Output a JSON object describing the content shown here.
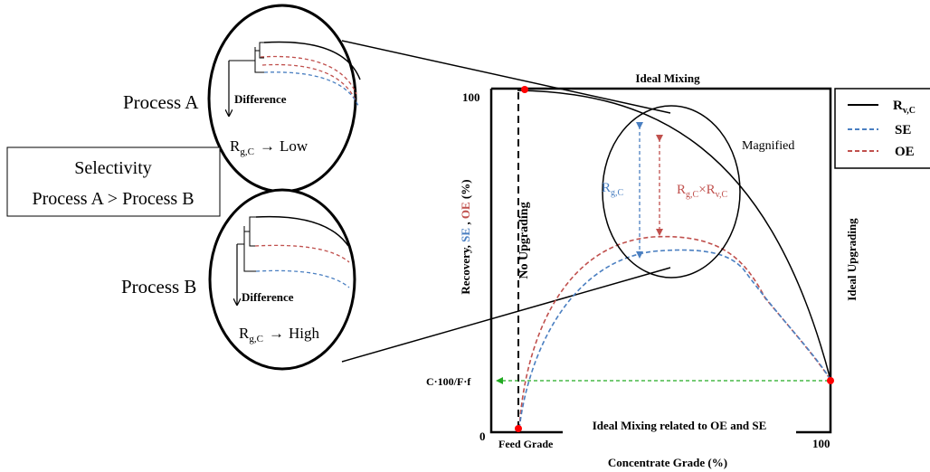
{
  "process_a": {
    "title": "Process A",
    "difference_label": "Difference",
    "rgc_main": "R",
    "rgc_sub": "g,C",
    "arrow": "→",
    "level": "Low"
  },
  "process_b": {
    "title": "Process B",
    "difference_label": "Difference",
    "rgc_main": "R",
    "rgc_sub": "g,C",
    "arrow": "→",
    "level": "High"
  },
  "selectivity_box": {
    "line1": "Selectivity",
    "line2": "Process A > Process B"
  },
  "chart": {
    "top_label": "Ideal Mixing",
    "bottom_label": "Ideal Mixing related to OE and SE",
    "no_upgrading": "No Upgrading",
    "ideal_upgrading": "Ideal Upgrading",
    "magnified": "Magnified",
    "xlabel": "Concentrate Grade (%)",
    "ylabel_prefix": "Recovery, ",
    "ylabel_se": "SE",
    "ylabel_sep": " , ",
    "ylabel_oe": "OE",
    "ylabel_suffix": " (%)",
    "y_tick_100": "100",
    "y_tick_0": "0",
    "x_tick_feed": "Feed Grade",
    "x_tick_100": "100",
    "cf_label": "C·100/F·f",
    "rgc_main": "R",
    "rgc_sub": "g,C",
    "rgc_rvc_main1": "R",
    "rgc_rvc_sub1": "g,C",
    "rgc_rvc_times": "×R",
    "rgc_rvc_sub2": "v,C"
  },
  "legend": {
    "items": [
      {
        "main": "R",
        "sub": "v,C",
        "color": "#000000",
        "dashed": false
      },
      {
        "main": "SE",
        "sub": "",
        "color": "#4a7fc1",
        "dashed": true
      },
      {
        "main": "OE",
        "sub": "",
        "color": "#c0504d",
        "dashed": true
      }
    ]
  },
  "colors": {
    "se": "#4a7fc1",
    "oe": "#c0504d",
    "green": "#22aa22",
    "red": "#ff0000"
  }
}
